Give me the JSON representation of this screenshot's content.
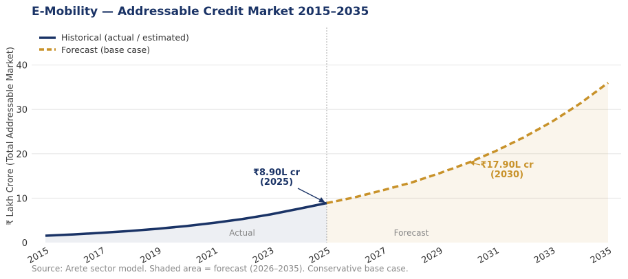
{
  "chart_data": {
    "type": "line",
    "title": "E-Mobility — Addressable Credit Market 2015–2035",
    "ylabel": "₹ Lakh Crore (Total Addressable Market)",
    "xlabel": "",
    "xlim": [
      2015,
      2035
    ],
    "ylim": [
      0,
      48
    ],
    "x_ticks": [
      2015,
      2017,
      2019,
      2021,
      2023,
      2025,
      2027,
      2029,
      2031,
      2033,
      2035
    ],
    "y_ticks": [
      0,
      10,
      20,
      30,
      40
    ],
    "grid": true,
    "legend_position": "top-left",
    "series": [
      {
        "name": "Historical (actual / estimated)",
        "color": "#1a3366",
        "style": "solid",
        "x": [
          2015,
          2016,
          2017,
          2018,
          2019,
          2020,
          2021,
          2022,
          2023,
          2024,
          2025
        ],
        "values": [
          1.55,
          1.84,
          2.2,
          2.62,
          3.12,
          3.72,
          4.45,
          5.3,
          6.35,
          7.6,
          8.9
        ]
      },
      {
        "name": "Forecast (base case)",
        "color": "#c8922a",
        "style": "dashed",
        "x": [
          2025,
          2026,
          2027,
          2028,
          2029,
          2030,
          2031,
          2032,
          2033,
          2034,
          2035
        ],
        "values": [
          8.9,
          10.2,
          11.8,
          13.5,
          15.6,
          17.9,
          20.6,
          23.7,
          27.2,
          31.3,
          36.0
        ]
      }
    ],
    "annotations": [
      {
        "text": "₹8.90L cr",
        "text2": "(2025)",
        "x": 2025,
        "y": 8.9,
        "color": "#1a3366"
      },
      {
        "text": "₹17.90L cr",
        "text2": "(2030)",
        "x": 2030,
        "y": 17.9,
        "color": "#c8922a"
      }
    ],
    "region_labels": {
      "actual": "Actual",
      "forecast": "Forecast"
    },
    "divider_x": 2025,
    "source": "Source: Arete sector model. Shaded area = forecast (2026–2035). Conservative base case."
  }
}
